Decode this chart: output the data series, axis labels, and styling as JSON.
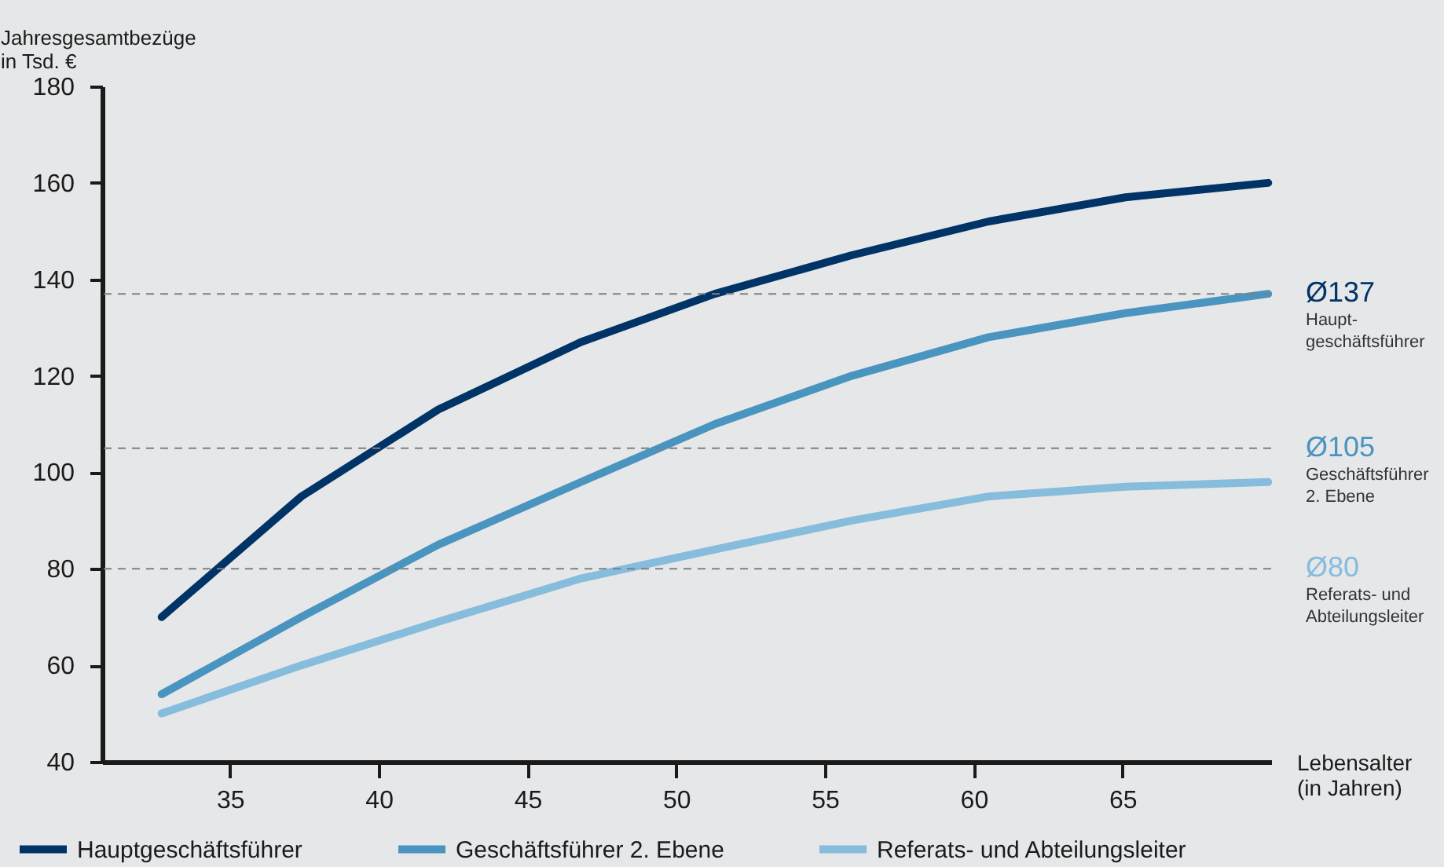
{
  "chart_data": {
    "type": "line",
    "ylabel": "Jahresgesamtbezüge\nin Tsd. €",
    "xlabel": "Lebensalter\n(in Jahren)",
    "x": [
      32.7,
      37.4,
      42,
      46.8,
      51.3,
      55.9,
      60.5,
      65.1,
      69.9
    ],
    "series": [
      {
        "name": "Hauptgeschäftsführer",
        "color": "#003366",
        "values": [
          70,
          95,
          113,
          127,
          137,
          145,
          152,
          157,
          160
        ]
      },
      {
        "name": "Geschäftsführer 2. Ebene",
        "color": "#4a94c0",
        "values": [
          54,
          70,
          85,
          98,
          110,
          120,
          128,
          133,
          137
        ]
      },
      {
        "name": "Referats- und Abteilungsleiter",
        "color": "#86bcdc",
        "values": [
          50,
          60,
          69,
          78,
          84,
          90,
          95,
          97,
          98
        ]
      }
    ],
    "xlim": [
      30.7,
      70
    ],
    "xticks": [
      35,
      40,
      45,
      50,
      55,
      60,
      65
    ],
    "ylim": [
      40,
      180
    ],
    "yticks": [
      40,
      60,
      80,
      100,
      120,
      140,
      160,
      180
    ],
    "ref_lines": [
      {
        "axis": "y",
        "value": 137,
        "label": "Ø137\nHaupt-\ngeschäftsführer",
        "color": "#808080",
        "line_style": "dashed"
      },
      {
        "axis": "y",
        "value": 105,
        "label": "Ø105\nGeschäftsführer\n2. Ebene",
        "color": "#808080",
        "line_style": "dashed"
      },
      {
        "axis": "y",
        "value": 80,
        "label": "Ø80\nReferats- und\nAbteilungsleiter",
        "color": "#808080",
        "line_style": "dashed"
      }
    ],
    "grid": false,
    "legend": "bottom",
    "marker": "none",
    "line_style": "solid"
  }
}
